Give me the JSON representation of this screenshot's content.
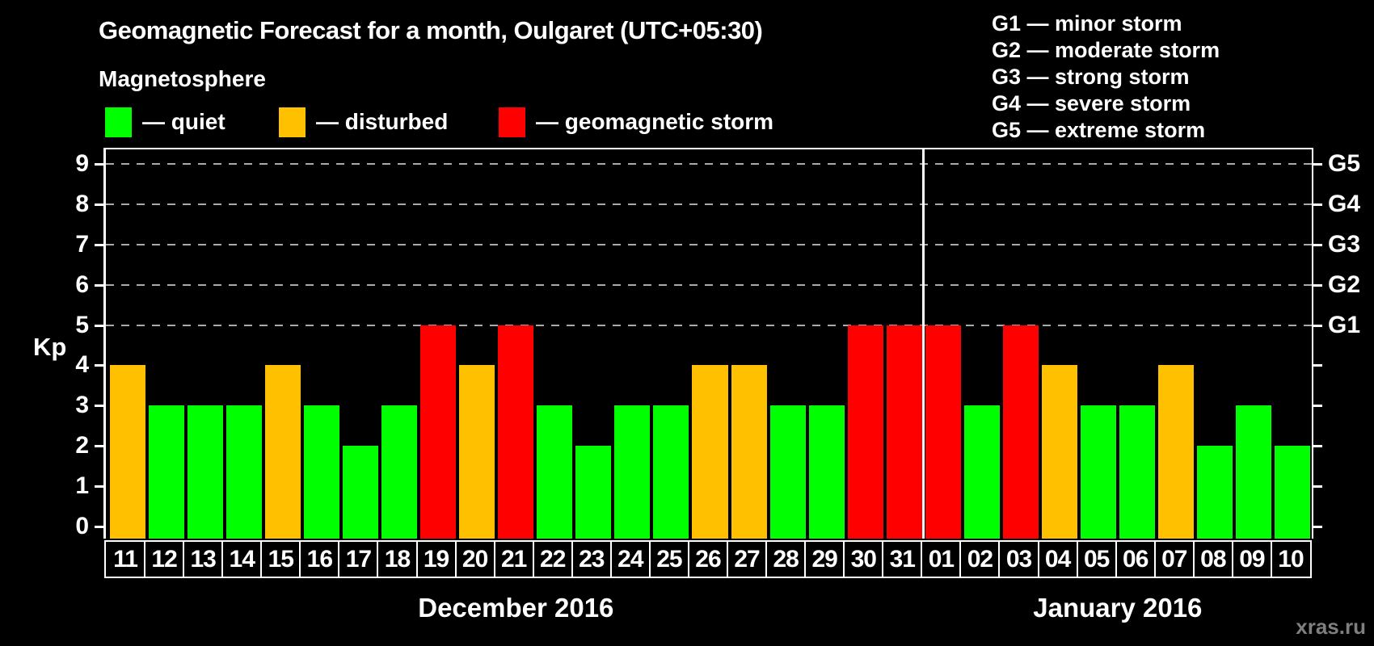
{
  "title": "Geomagnetic Forecast for a month, Oulgaret (UTC+05:30)",
  "subtitle": "Magnetosphere",
  "legend": {
    "items": [
      {
        "key": "quiet",
        "label": "— quiet",
        "color": "#00ff00"
      },
      {
        "key": "disturbed",
        "label": "— disturbed",
        "color": "#ffc000"
      },
      {
        "key": "storm",
        "label": "— geomagnetic storm",
        "color": "#ff0000"
      }
    ]
  },
  "g_scale_legend": [
    {
      "level": "G1",
      "description": "minor storm"
    },
    {
      "level": "G2",
      "description": "moderate storm"
    },
    {
      "level": "G3",
      "description": "strong storm"
    },
    {
      "level": "G4",
      "description": "severe storm"
    },
    {
      "level": "G5",
      "description": "extreme storm"
    }
  ],
  "watermark": "xras.ru",
  "chart_data": {
    "type": "bar",
    "ylabel": "Kp",
    "ylim": [
      0,
      9
    ],
    "yticks": [
      0,
      1,
      2,
      3,
      4,
      5,
      6,
      7,
      8,
      9
    ],
    "gridlines": [
      5,
      6,
      7,
      8,
      9
    ],
    "grid_style": "dashed",
    "right_axis": [
      {
        "kp": 5,
        "label": "G1"
      },
      {
        "kp": 6,
        "label": "G2"
      },
      {
        "kp": 7,
        "label": "G3"
      },
      {
        "kp": 8,
        "label": "G4"
      },
      {
        "kp": 9,
        "label": "G5"
      }
    ],
    "color_rule": {
      "quiet": "kp<4",
      "disturbed": "kp=4",
      "storm": "kp>=5"
    },
    "months": [
      {
        "label": "December 2016",
        "days": [
          {
            "d": "11",
            "kp": 4,
            "s": "disturbed"
          },
          {
            "d": "12",
            "kp": 3,
            "s": "quiet"
          },
          {
            "d": "13",
            "kp": 3,
            "s": "quiet"
          },
          {
            "d": "14",
            "kp": 3,
            "s": "quiet"
          },
          {
            "d": "15",
            "kp": 4,
            "s": "disturbed"
          },
          {
            "d": "16",
            "kp": 3,
            "s": "quiet"
          },
          {
            "d": "17",
            "kp": 2,
            "s": "quiet"
          },
          {
            "d": "18",
            "kp": 3,
            "s": "quiet"
          },
          {
            "d": "19",
            "kp": 5,
            "s": "storm"
          },
          {
            "d": "20",
            "kp": 4,
            "s": "disturbed"
          },
          {
            "d": "21",
            "kp": 5,
            "s": "storm"
          },
          {
            "d": "22",
            "kp": 3,
            "s": "quiet"
          },
          {
            "d": "23",
            "kp": 2,
            "s": "quiet"
          },
          {
            "d": "24",
            "kp": 3,
            "s": "quiet"
          },
          {
            "d": "25",
            "kp": 3,
            "s": "quiet"
          },
          {
            "d": "26",
            "kp": 4,
            "s": "disturbed"
          },
          {
            "d": "27",
            "kp": 4,
            "s": "disturbed"
          },
          {
            "d": "28",
            "kp": 3,
            "s": "quiet"
          },
          {
            "d": "29",
            "kp": 3,
            "s": "quiet"
          },
          {
            "d": "30",
            "kp": 5,
            "s": "storm"
          },
          {
            "d": "31",
            "kp": 5,
            "s": "storm"
          }
        ]
      },
      {
        "label": "January 2016",
        "days": [
          {
            "d": "01",
            "kp": 5,
            "s": "storm"
          },
          {
            "d": "02",
            "kp": 3,
            "s": "quiet"
          },
          {
            "d": "03",
            "kp": 5,
            "s": "storm"
          },
          {
            "d": "04",
            "kp": 4,
            "s": "disturbed"
          },
          {
            "d": "05",
            "kp": 3,
            "s": "quiet"
          },
          {
            "d": "06",
            "kp": 3,
            "s": "quiet"
          },
          {
            "d": "07",
            "kp": 4,
            "s": "disturbed"
          },
          {
            "d": "08",
            "kp": 2,
            "s": "quiet"
          },
          {
            "d": "09",
            "kp": 3,
            "s": "quiet"
          },
          {
            "d": "10",
            "kp": 2,
            "s": "quiet"
          }
        ]
      }
    ]
  }
}
